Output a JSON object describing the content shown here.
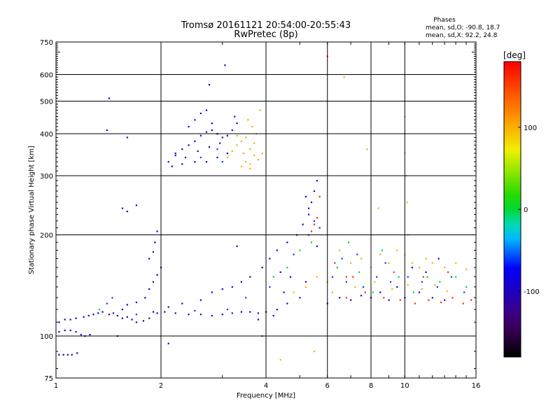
{
  "chart_data": {
    "type": "scatter",
    "title_line1": "Tromsø 20161121 20:54:00-20:55:43",
    "title_line2": "RwPretec (8p)",
    "xlabel": "Frequency [MHz]",
    "ylabel": "Stationary phase Virtual Height [km]",
    "x_scale": "log",
    "y_scale": "log",
    "xlim": [
      1,
      16
    ],
    "ylim": [
      75,
      750
    ],
    "x_ticks": [
      1,
      2,
      4,
      6,
      8,
      10,
      16
    ],
    "x_grid": [
      2,
      4,
      6,
      8,
      10
    ],
    "y_ticks": [
      75,
      100,
      200,
      300,
      400,
      500,
      600,
      750
    ],
    "y_grid": [
      100,
      200,
      300,
      400,
      500,
      600
    ],
    "grid": true,
    "phase_info": {
      "title": "Phases",
      "line_o": "mean, sd,O: -90.8, 18.7",
      "line_x": "mean, sd,X:  92.2, 24.8"
    },
    "colorbar": {
      "label": "[deg]",
      "range": [
        -180,
        180
      ],
      "ticks": [
        100,
        0,
        -100
      ],
      "colormap": "rainbow"
    },
    "series": [
      {
        "phase": -100,
        "points": [
          [
            1.02,
            88
          ],
          [
            1.05,
            88
          ],
          [
            1.08,
            88
          ],
          [
            1.11,
            88
          ],
          [
            1.15,
            89
          ],
          [
            1.02,
            103
          ],
          [
            1.06,
            104
          ],
          [
            1.1,
            104
          ],
          [
            1.14,
            103
          ],
          [
            1.18,
            101
          ],
          [
            1.21,
            100
          ],
          [
            1.25,
            101
          ],
          [
            1.02,
            110
          ],
          [
            1.06,
            112
          ],
          [
            1.1,
            112
          ],
          [
            1.14,
            113
          ],
          [
            1.2,
            114
          ],
          [
            1.24,
            115
          ],
          [
            1.28,
            116
          ],
          [
            1.32,
            117
          ],
          [
            1.36,
            118
          ],
          [
            1.42,
            116
          ],
          [
            1.46,
            117
          ],
          [
            1.5,
            115
          ],
          [
            1.55,
            113
          ],
          [
            1.6,
            114
          ],
          [
            1.65,
            112
          ],
          [
            1.7,
            110
          ],
          [
            1.78,
            111
          ],
          [
            1.85,
            113
          ],
          [
            1.9,
            118
          ],
          [
            1.95,
            117
          ],
          [
            2.05,
            118
          ],
          [
            2.2,
            117
          ],
          [
            2.4,
            116
          ],
          [
            2.6,
            116
          ],
          [
            2.8,
            115
          ],
          [
            3,
            116
          ],
          [
            3.2,
            117
          ],
          [
            3.4,
            118
          ],
          [
            3.6,
            118
          ],
          [
            3.8,
            117
          ],
          [
            4,
            118
          ],
          [
            4.3,
            120
          ],
          [
            4.6,
            125
          ],
          [
            5,
            130
          ],
          [
            1.55,
            120
          ],
          [
            1.6,
            124
          ],
          [
            1.7,
            126
          ],
          [
            1.8,
            130
          ],
          [
            1.85,
            138
          ],
          [
            1.9,
            145
          ],
          [
            1.95,
            152
          ],
          [
            2,
            160
          ],
          [
            1.85,
            170
          ],
          [
            1.9,
            178
          ],
          [
            1.92,
            190
          ],
          [
            1.95,
            205
          ],
          [
            1.55,
            240
          ],
          [
            1.6,
            235
          ],
          [
            1.7,
            245
          ],
          [
            2.1,
            122
          ],
          [
            2.3,
            125
          ],
          [
            2.6,
            128
          ],
          [
            2.8,
            135
          ],
          [
            3,
            138
          ],
          [
            3.2,
            140
          ],
          [
            3.4,
            145
          ],
          [
            3.6,
            150
          ],
          [
            3.9,
            160
          ],
          [
            4.1,
            170
          ],
          [
            4.3,
            180
          ],
          [
            4.6,
            190
          ],
          [
            4.9,
            200
          ],
          [
            5.1,
            215
          ],
          [
            5.3,
            230
          ],
          [
            5.4,
            250
          ],
          [
            5.5,
            270
          ],
          [
            5.6,
            290
          ],
          [
            5.2,
            260
          ],
          [
            5.3,
            240
          ],
          [
            2.1,
            330
          ],
          [
            2.2,
            345
          ],
          [
            2.3,
            360
          ],
          [
            2.4,
            370
          ],
          [
            2.5,
            380
          ],
          [
            2.6,
            395
          ],
          [
            2.7,
            405
          ],
          [
            2.8,
            410
          ],
          [
            2.9,
            400
          ],
          [
            3,
            390
          ],
          [
            2.15,
            320
          ],
          [
            2.3,
            325
          ],
          [
            2.5,
            330
          ],
          [
            2.7,
            330
          ],
          [
            2.9,
            340
          ],
          [
            3.1,
            350
          ],
          [
            2.4,
            420
          ],
          [
            2.5,
            440
          ],
          [
            2.6,
            460
          ],
          [
            2.7,
            470
          ],
          [
            2.8,
            430
          ],
          [
            2.2,
            350
          ],
          [
            2.35,
            340
          ],
          [
            2.55,
            355
          ],
          [
            2.75,
            365
          ],
          [
            2.95,
            375
          ],
          [
            3.1,
            395
          ],
          [
            3.2,
            410
          ],
          [
            3.3,
            430
          ],
          [
            3.25,
            450
          ],
          [
            3.05,
            640
          ],
          [
            2.75,
            560
          ],
          [
            1.42,
            510
          ],
          [
            1.4,
            410
          ],
          [
            1.6,
            390
          ],
          [
            6,
            125
          ],
          [
            6.5,
            130
          ],
          [
            7,
            128
          ],
          [
            7.5,
            132
          ],
          [
            8,
            130
          ],
          [
            8.5,
            135
          ],
          [
            9,
            128
          ],
          [
            9.5,
            140
          ],
          [
            10,
            130
          ],
          [
            11,
            135
          ],
          [
            12,
            130
          ],
          [
            13,
            128
          ],
          [
            10.5,
            160
          ],
          [
            11.5,
            155
          ],
          [
            12.5,
            170
          ],
          [
            2.1,
            95
          ],
          [
            1.5,
            100
          ],
          [
            3.3,
            185
          ],
          [
            4.4,
            155
          ],
          [
            4.7,
            150
          ],
          [
            5.6,
            185
          ],
          [
            4.2,
            115
          ],
          [
            3.8,
            112
          ],
          [
            4.5,
            135
          ],
          [
            5.2,
            145
          ]
        ]
      },
      {
        "phase": -60,
        "points": [
          [
            1.4,
            125
          ],
          [
            1.45,
            130
          ],
          [
            1.7,
            116
          ],
          [
            2.5,
            119
          ],
          [
            3.1,
            120
          ],
          [
            3.5,
            130
          ],
          [
            4.1,
            140
          ],
          [
            4.8,
            175
          ],
          [
            5.3,
            200
          ],
          [
            5.5,
            220
          ],
          [
            5.7,
            210
          ],
          [
            6.2,
            150
          ],
          [
            6.8,
            145
          ],
          [
            7.6,
            140
          ],
          [
            8.3,
            150
          ],
          [
            9.1,
            145
          ],
          [
            10.2,
            150
          ],
          [
            11.2,
            145
          ],
          [
            12.4,
            140
          ],
          [
            13.6,
            150
          ],
          [
            14.8,
            135
          ],
          [
            2.6,
            340
          ],
          [
            2.9,
            360
          ],
          [
            3.0,
            330
          ],
          [
            6.6,
            170
          ],
          [
            7.3,
            175
          ],
          [
            8.8,
            165
          ]
        ]
      },
      {
        "phase": 0,
        "points": [
          [
            1.33,
            120
          ],
          [
            4.2,
            150
          ],
          [
            4.6,
            160
          ],
          [
            5.0,
            180
          ],
          [
            5.4,
            190
          ],
          [
            6.4,
            160
          ],
          [
            7.4,
            155
          ],
          [
            8.1,
            135
          ],
          [
            9.6,
            150
          ],
          [
            10.6,
            135
          ],
          [
            11.6,
            150
          ],
          [
            12.6,
            145
          ],
          [
            14,
            150
          ],
          [
            15,
            140
          ],
          [
            6.9,
            190
          ],
          [
            8.6,
            180
          ]
        ]
      },
      {
        "phase": 100,
        "points": [
          [
            3.1,
            340
          ],
          [
            3.2,
            355
          ],
          [
            3.3,
            370
          ],
          [
            3.4,
            380
          ],
          [
            3.5,
            390
          ],
          [
            3.6,
            360
          ],
          [
            3.7,
            345
          ],
          [
            3.8,
            335
          ],
          [
            3.9,
            350
          ],
          [
            3.4,
            320
          ],
          [
            3.5,
            330
          ],
          [
            3.6,
            325
          ],
          [
            3.7,
            375
          ],
          [
            3.75,
            400
          ],
          [
            3.65,
            420
          ],
          [
            3.55,
            440
          ],
          [
            3.85,
            470
          ],
          [
            3.3,
            395
          ],
          [
            3.45,
            350
          ],
          [
            3.6,
            315
          ],
          [
            4.8,
            135
          ],
          [
            5.2,
            140
          ],
          [
            5.6,
            150
          ],
          [
            6,
            145
          ],
          [
            6.5,
            180
          ],
          [
            7,
            165
          ],
          [
            7.5,
            170
          ],
          [
            8,
            160
          ],
          [
            8.5,
            175
          ],
          [
            9,
            165
          ],
          [
            9.5,
            180
          ],
          [
            10,
            175
          ],
          [
            10.5,
            165
          ],
          [
            11,
            160
          ],
          [
            11.5,
            170
          ],
          [
            12,
            165
          ],
          [
            13,
            160
          ],
          [
            14,
            165
          ],
          [
            15,
            158
          ],
          [
            6.2,
            135
          ],
          [
            7.2,
            140
          ],
          [
            8.2,
            145
          ],
          [
            9.2,
            138
          ],
          [
            10.2,
            142
          ],
          [
            11.2,
            138
          ],
          [
            12.2,
            142
          ],
          [
            13.2,
            136
          ],
          [
            4.4,
            85
          ],
          [
            5.5,
            90
          ],
          [
            6.7,
            590
          ],
          [
            7.8,
            360
          ],
          [
            8.4,
            240
          ],
          [
            10,
            400
          ],
          [
            10,
            350
          ],
          [
            10,
            450
          ],
          [
            10.1,
            300
          ],
          [
            10.15,
            250
          ],
          [
            10.2,
            200
          ]
        ]
      },
      {
        "phase": 160,
        "points": [
          [
            5.5,
            215
          ],
          [
            5.6,
            225
          ],
          [
            5.4,
            205
          ],
          [
            5.7,
            260
          ],
          [
            6.0,
            680
          ],
          [
            6.8,
            130
          ],
          [
            7.7,
            135
          ],
          [
            8.7,
            130
          ],
          [
            9.7,
            128
          ],
          [
            10.7,
            125
          ],
          [
            11.7,
            128
          ],
          [
            12.7,
            126
          ],
          [
            13.7,
            130
          ],
          [
            14.7,
            125
          ],
          [
            15.5,
            128
          ],
          [
            6.3,
            165
          ],
          [
            7.1,
            150
          ],
          [
            9.3,
            155
          ],
          [
            11.3,
            150
          ],
          [
            13.3,
            155
          ],
          [
            3.9,
            100
          ],
          [
            6.8,
            150
          ]
        ]
      }
    ]
  }
}
